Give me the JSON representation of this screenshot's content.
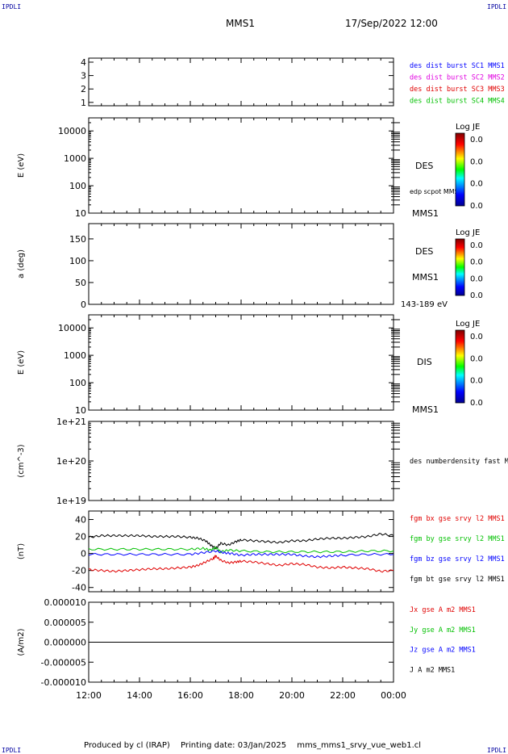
{
  "header": {
    "corner_label": "IPDLI",
    "title": "MMS1",
    "datetime": "17/Sep/2022 12:00"
  },
  "footer": {
    "produced_by": "Produced by cl (IRAP)",
    "printing_date": "Printing date: 03/Jan/2025",
    "filename": "mms_mms1_srvy_vue_web1.cl"
  },
  "colors": {
    "blue": "#0000ff",
    "magenta": "#e000e0",
    "red": "#e00000",
    "green": "#00c000",
    "black": "#000000"
  },
  "chart_data": [
    {
      "id": "p1",
      "type": "line",
      "yticks": [
        1,
        2,
        3,
        4
      ],
      "yticklabels": [
        "1",
        "2",
        "3",
        "4"
      ],
      "ylim": [
        0.75,
        4.3
      ],
      "legend": [
        {
          "name": "des dist burst SC1 MMS1",
          "color": "#0000ff"
        },
        {
          "name": "des dist burst SC2 MMS2",
          "color": "#e000e0"
        },
        {
          "name": "des dist burst SC3 MMS3",
          "color": "#e00000"
        },
        {
          "name": "des dist burst SC4 MMS4",
          "color": "#00c000"
        }
      ]
    },
    {
      "id": "p2",
      "type": "heatmap",
      "ylabel": "E (eV)",
      "log": true,
      "yticks": [
        10,
        100,
        1000,
        10000
      ],
      "yticklabels": [
        "10",
        "100",
        "1000",
        "10000"
      ],
      "ylim": [
        10,
        30000
      ],
      "side_labels": [
        "DES",
        "edp scpot MMS1",
        "MMS1"
      ],
      "colorbar": {
        "title": "Log JE",
        "ticks": [
          "0.0",
          "0.0",
          "0.0",
          "0.0"
        ]
      }
    },
    {
      "id": "p3",
      "type": "heatmap",
      "ylabel": "a (deg)",
      "yticks": [
        0,
        50,
        100,
        150
      ],
      "yticklabels": [
        "0",
        "50",
        "100",
        "150"
      ],
      "ylim": [
        0,
        185
      ],
      "side_labels": [
        "DES",
        "MMS1",
        "143-189 eV"
      ],
      "colorbar": {
        "title": "Log JE",
        "ticks": [
          "0.0",
          "0.0",
          "0.0",
          "0.0"
        ]
      }
    },
    {
      "id": "p4",
      "type": "heatmap",
      "ylabel": "E (eV)",
      "log": true,
      "yticks": [
        10,
        100,
        1000,
        10000
      ],
      "yticklabels": [
        "10",
        "100",
        "1000",
        "10000"
      ],
      "ylim": [
        10,
        30000
      ],
      "side_labels": [
        "DIS",
        "MMS1"
      ],
      "colorbar": {
        "title": "Log JE",
        "ticks": [
          "0.0",
          "0.0",
          "0.0",
          "0.0"
        ]
      }
    },
    {
      "id": "p5",
      "type": "line",
      "ylabel": "(cm^-3)",
      "log": true,
      "yticks": [
        1e+19,
        1e+20,
        1e+21
      ],
      "yticklabels": [
        "1e+19",
        "1e+20",
        "1e+21"
      ],
      "ylim": [
        1e+19,
        1e+21
      ],
      "legend": [
        {
          "name": "des numberdensity fast M",
          "color": "#000000"
        }
      ]
    },
    {
      "id": "p6",
      "type": "line",
      "ylabel": "(nT)",
      "yticks": [
        -40,
        -20,
        0,
        20,
        40
      ],
      "yticklabels": [
        "-40",
        "-20",
        "0",
        "20",
        "40"
      ],
      "ylim": [
        -45,
        50
      ],
      "legend": [
        {
          "name": "fgm bx gse srvy l2 MMS1",
          "color": "#e00000"
        },
        {
          "name": "fgm by gse srvy l2 MMS1",
          "color": "#00c000"
        },
        {
          "name": "fgm bz gse srvy l2 MMS1",
          "color": "#0000ff"
        },
        {
          "name": "fgm bt gse srvy l2 MMS1",
          "color": "#000000"
        }
      ],
      "series": [
        {
          "color": "#000000",
          "x": [
            12,
            12.5,
            13,
            13.5,
            14,
            14.5,
            15,
            15.5,
            16,
            16.3,
            16.6,
            16.8,
            17,
            17.2,
            17.5,
            17.8,
            18,
            18.5,
            19,
            19.5,
            20,
            20.5,
            21,
            21.5,
            22,
            22.5,
            23,
            23.5,
            24
          ],
          "y": [
            19,
            21,
            21,
            21,
            21,
            20,
            20,
            20,
            19,
            18,
            15,
            10,
            6,
            12,
            10,
            14,
            16,
            15,
            14,
            13,
            15,
            15,
            17,
            18,
            18,
            19,
            20,
            23,
            21
          ]
        },
        {
          "color": "#00c000",
          "x": [
            12,
            13,
            14,
            15,
            16,
            16.5,
            16.8,
            17,
            17.2,
            17.5,
            18,
            19,
            20,
            21,
            22,
            23,
            24
          ],
          "y": [
            5,
            5,
            5,
            5,
            5,
            6,
            4,
            7,
            2,
            4,
            3,
            2,
            2,
            2,
            2,
            3,
            3
          ]
        },
        {
          "color": "#0000ff",
          "x": [
            12,
            13,
            14,
            15,
            16,
            16.5,
            17,
            17.3,
            17.6,
            18,
            18.5,
            19,
            19.5,
            20,
            20.5,
            21,
            21.5,
            22,
            23,
            24
          ],
          "y": [
            -1,
            -1,
            -1,
            -1,
            -1,
            1,
            3,
            1,
            0,
            -2,
            -1,
            -1,
            -1,
            -1,
            -3,
            -4,
            -3,
            -2,
            -1,
            -1
          ]
        },
        {
          "color": "#e00000",
          "x": [
            12,
            12.5,
            13,
            13.5,
            14,
            14.5,
            15,
            15.5,
            16,
            16.3,
            16.6,
            16.9,
            17,
            17.2,
            17.5,
            17.8,
            18,
            18.5,
            19,
            19.5,
            20,
            20.5,
            21,
            21.5,
            22,
            22.5,
            23,
            23.5,
            24
          ],
          "y": [
            -19,
            -20,
            -21,
            -20,
            -19,
            -18,
            -18,
            -17,
            -16,
            -14,
            -10,
            -6,
            -3,
            -8,
            -11,
            -10,
            -9,
            -10,
            -12,
            -14,
            -12,
            -13,
            -16,
            -17,
            -16,
            -17,
            -18,
            -21,
            -20
          ]
        }
      ]
    },
    {
      "id": "p7",
      "type": "line",
      "ylabel": "(A/m2)",
      "yticks": [
        -1e-05,
        -5e-06,
        0,
        5e-06,
        1e-05
      ],
      "yticklabels": [
        "-0.000010",
        "-0.000005",
        "0.000000",
        "0.000005",
        "0.000010"
      ],
      "ylim": [
        -1e-05,
        1e-05
      ],
      "legend": [
        {
          "name": "Jx gse A m2 MMS1",
          "color": "#e00000"
        },
        {
          "name": "Jy gse A m2 MMS1",
          "color": "#00c000"
        },
        {
          "name": "Jz gse A m2 MMS1",
          "color": "#0000ff"
        },
        {
          "name": "J A m2 MMS1",
          "color": "#000000"
        }
      ],
      "series": [
        {
          "color": "#000000",
          "x": [
            12,
            24
          ],
          "y": [
            0,
            0
          ]
        }
      ]
    }
  ],
  "xaxis": {
    "range": [
      12,
      24
    ],
    "ticks": [
      12,
      14,
      16,
      18,
      20,
      22,
      24
    ],
    "ticklabels": [
      "12:00",
      "14:00",
      "16:00",
      "18:00",
      "20:00",
      "22:00",
      "00:00"
    ]
  }
}
